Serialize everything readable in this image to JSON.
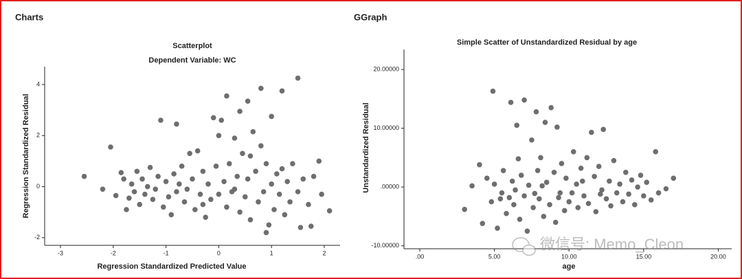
{
  "headings": [
    "Charts",
    "GGraph"
  ],
  "watermark": "微信号: Memo_Cleon",
  "chart_data": [
    {
      "type": "scatter",
      "title": "Scatterplot",
      "subtitle": "Dependent Variable: WC",
      "x_label": "Regression Standardized Predicted Value",
      "y_label": "Regression Standardized Residual",
      "color": "#6e6e6e",
      "xlim": [
        -3.3,
        2.3
      ],
      "xticks": [
        -3,
        -2,
        -1,
        0,
        1,
        2
      ],
      "ylim": [
        -2.3,
        4.7
      ],
      "yticks": [
        -2,
        0,
        2,
        4
      ],
      "x": [
        -2.55,
        -2.2,
        -2.05,
        -1.95,
        -1.85,
        -1.8,
        -1.75,
        -1.7,
        -1.65,
        -1.6,
        -1.55,
        -1.5,
        -1.45,
        -1.4,
        -1.35,
        -1.3,
        -1.25,
        -1.2,
        -1.15,
        -1.1,
        -1.05,
        -1.0,
        -0.95,
        -0.9,
        -0.85,
        -0.8,
        -0.8,
        -0.75,
        -0.7,
        -0.65,
        -0.6,
        -0.55,
        -0.5,
        -0.45,
        -0.4,
        -0.35,
        -0.3,
        -0.25,
        -0.2,
        -0.15,
        -0.1,
        -0.05,
        0.0,
        0.0,
        0.05,
        0.1,
        0.15,
        0.15,
        0.2,
        0.25,
        0.3,
        0.35,
        0.4,
        0.4,
        0.45,
        0.5,
        0.55,
        0.55,
        0.6,
        0.65,
        0.7,
        0.75,
        0.8,
        0.8,
        0.85,
        0.9,
        0.95,
        1.0,
        1.0,
        1.05,
        1.1,
        1.15,
        1.2,
        1.2,
        1.25,
        1.3,
        1.35,
        1.4,
        1.5,
        1.5,
        1.55,
        1.6,
        1.7,
        1.75,
        1.8,
        1.9,
        1.95,
        2.1,
        0.9,
        0.3,
        -0.3,
        0.6
      ],
      "values": [
        0.4,
        -0.1,
        1.55,
        -0.35,
        0.55,
        0.3,
        -0.9,
        -0.45,
        0.1,
        -0.2,
        0.6,
        -0.7,
        0.3,
        -0.3,
        0.0,
        0.75,
        -0.5,
        -0.1,
        0.4,
        2.6,
        -0.8,
        0.2,
        -0.4,
        -1.1,
        0.5,
        2.45,
        -0.2,
        0.1,
        0.8,
        -0.6,
        -0.1,
        1.3,
        0.3,
        -0.9,
        1.4,
        -0.3,
        0.6,
        -1.2,
        0.1,
        -0.5,
        2.7,
        0.8,
        2.0,
        -0.3,
        2.6,
        0.2,
        3.55,
        -0.8,
        0.9,
        -0.2,
        1.9,
        0.4,
        2.95,
        -1.0,
        1.3,
        -0.4,
        3.35,
        0.3,
        -1.3,
        2.15,
        0.6,
        -0.6,
        3.85,
        1.6,
        -0.2,
        0.9,
        -1.5,
        2.75,
        0.1,
        -0.9,
        0.5,
        -0.3,
        3.75,
        0.7,
        -1.1,
        0.2,
        -0.6,
        0.9,
        4.25,
        -0.2,
        -1.6,
        0.3,
        -0.7,
        -1.55,
        0.4,
        1.0,
        -0.3,
        -0.95,
        -1.8,
        -0.1,
        -0.7,
        1.2
      ]
    },
    {
      "type": "scatter",
      "title": "Simple Scatter of Unstandardized Residual by age",
      "x_label": "age",
      "y_label": "Unstandardized Residual",
      "color": "#6e6e6e",
      "xlim": [
        -1.06,
        20.9
      ],
      "xticks": [
        {
          "value": 0,
          "label": ".00"
        },
        {
          "value": 5,
          "label": "5.00"
        },
        {
          "value": 10,
          "label": "10.00"
        },
        {
          "value": 15,
          "label": "15.00"
        },
        {
          "value": 20,
          "label": "20.00"
        }
      ],
      "ylim": [
        -10.5,
        23.4
      ],
      "yticks": [
        {
          "value": -10,
          "label": "-10.00000"
        },
        {
          "value": 0,
          "label": ".00000"
        },
        {
          "value": 10,
          "label": "10.00000"
        },
        {
          "value": 20,
          "label": "20.00000"
        }
      ],
      "x": [
        3,
        4,
        4.2,
        4.5,
        4.8,
        4.9,
        5,
        5.2,
        5.5,
        5.6,
        5.8,
        6,
        6.1,
        6.2,
        6.3,
        6.5,
        6.6,
        6.7,
        6.8,
        7,
        7,
        7.2,
        7.3,
        7.5,
        7.6,
        7.8,
        7.9,
        8,
        8.1,
        8.3,
        8.4,
        8.5,
        8.7,
        8.8,
        9,
        9.1,
        9.2,
        9.4,
        9.5,
        9.7,
        9.8,
        10,
        10.2,
        10.3,
        10.5,
        10.6,
        10.8,
        11,
        11.2,
        11.3,
        11.5,
        11.7,
        11.8,
        12,
        12.2,
        12.3,
        12.5,
        12.7,
        12.8,
        13,
        13.2,
        13.4,
        13.6,
        13.8,
        14,
        14.2,
        14.4,
        14.6,
        14.8,
        15,
        15.2,
        15.5,
        15.8,
        16,
        16.5,
        17,
        3.5,
        6.4,
        8.2,
        9.3,
        10.9,
        12.1,
        5.4,
        7.7
      ],
      "values": [
        -3.8,
        3.8,
        -6.2,
        1.5,
        -2.5,
        16.3,
        0.5,
        -7,
        -1,
        2.8,
        -4.5,
        -1.8,
        14.4,
        1,
        -3,
        10.5,
        4.8,
        -5.5,
        2,
        -1.5,
        14.8,
        -7.5,
        0.3,
        8,
        -3.5,
        12.8,
        2.8,
        -2,
        5,
        -5,
        11,
        0.8,
        -3,
        13.5,
        2.5,
        -6,
        10.2,
        -1,
        4,
        -4,
        1.5,
        -2.5,
        -1,
        6,
        0.5,
        -3.5,
        3.2,
        -1.5,
        5,
        -2.8,
        9.3,
        1.8,
        -4.2,
        3.5,
        -0.5,
        9.8,
        -2,
        1,
        -3.2,
        4.5,
        -1,
        0.5,
        -2.5,
        2.5,
        -1.2,
        1.2,
        -3,
        0,
        2,
        -1.5,
        0.8,
        -2.2,
        6,
        -1,
        -0.3,
        1.5,
        0.2,
        -0.5,
        0.2,
        -1.8,
        1,
        -1.2,
        -2,
        -1.1
      ]
    }
  ]
}
